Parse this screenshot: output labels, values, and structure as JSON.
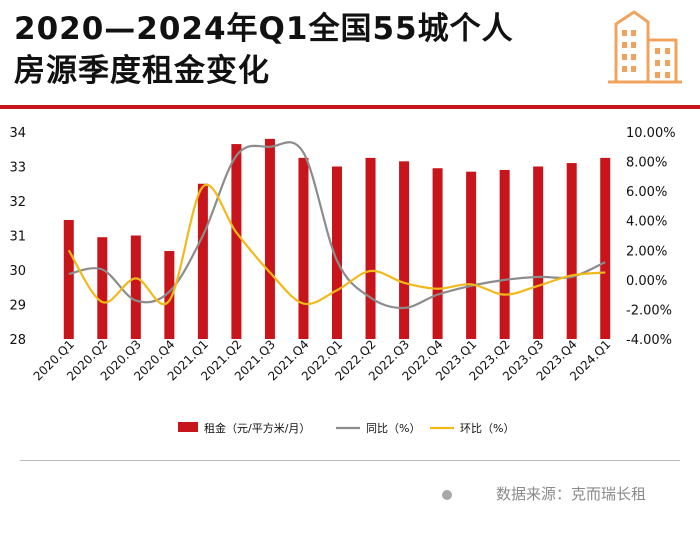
{
  "header": {
    "title_line1": "2020—2024年Q1全国55城个人",
    "title_line2": "房源季度租金变化",
    "logo_icon": "city-buildings-icon"
  },
  "colors": {
    "accent": "#c8141b",
    "bar": "#c8141b",
    "yoy_line": "#8c8c8c",
    "qoq_line": "#f2b91a",
    "logo": "#f0a35e"
  },
  "chart_data": {
    "type": "bar",
    "title": "2020—2024年Q1全国55城个人房源季度租金变化",
    "categories": [
      "2020.Q1",
      "2020.Q2",
      "2020.Q3",
      "2020.Q4",
      "2021.Q1",
      "2021.Q2",
      "2021.Q3",
      "2021.Q4",
      "2022.Q1",
      "2022.Q2",
      "2022.Q3",
      "2022.Q4",
      "2023.Q1",
      "2023.Q2",
      "2023.Q3",
      "2023.Q4",
      "2024.Q1"
    ],
    "series": [
      {
        "name": "租金（元/平方米/月）",
        "type": "bar",
        "axis": "left",
        "values": [
          31.45,
          30.95,
          31.0,
          30.55,
          32.5,
          33.65,
          33.8,
          33.25,
          33.0,
          33.25,
          33.15,
          32.95,
          32.85,
          32.9,
          33.0,
          33.1,
          33.25
        ]
      },
      {
        "name": "同比（%）",
        "type": "line",
        "axis": "right",
        "values": [
          0.4,
          0.7,
          -1.4,
          -0.8,
          3.0,
          8.4,
          9.0,
          8.6,
          1.3,
          -1.2,
          -1.9,
          -1.0,
          -0.4,
          0.0,
          0.2,
          0.2,
          1.2
        ]
      },
      {
        "name": "环比（%）",
        "type": "line",
        "axis": "right",
        "values": [
          2.0,
          -1.5,
          0.1,
          -1.4,
          6.3,
          3.2,
          0.5,
          -1.6,
          -0.7,
          0.6,
          -0.2,
          -0.6,
          -0.3,
          -1.0,
          -0.4,
          0.3,
          0.5
        ]
      }
    ],
    "y_left": {
      "range": [
        28,
        34
      ],
      "ticks": [
        "28",
        "29",
        "30",
        "31",
        "32",
        "33",
        "34"
      ]
    },
    "y_right": {
      "range": [
        -4,
        10
      ],
      "ticks": [
        "-4.00%",
        "-2.00%",
        "0.00%",
        "2.00%",
        "4.00%",
        "6.00%",
        "8.00%",
        "10.00%"
      ]
    },
    "legend_position": "bottom",
    "grid": false
  },
  "footer": {
    "source": "数据来源：克而瑞长租"
  }
}
